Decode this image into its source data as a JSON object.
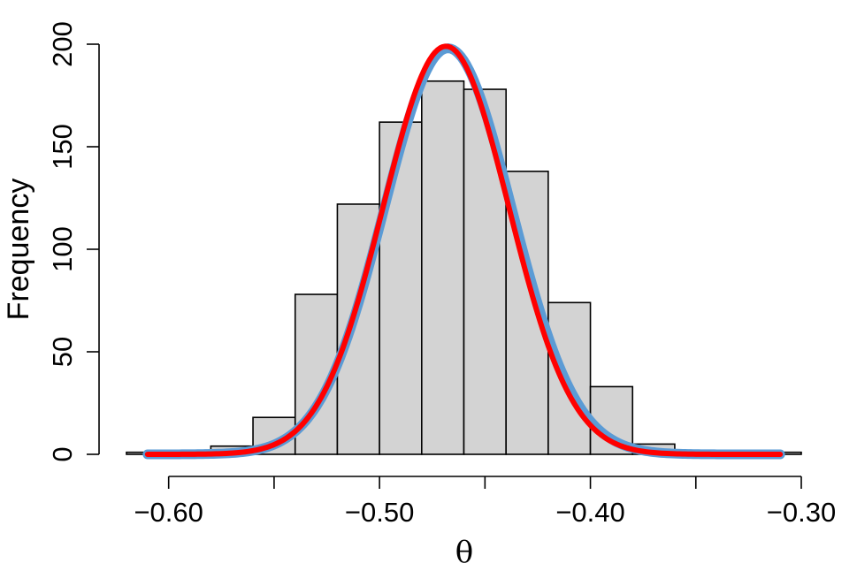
{
  "chart_data": {
    "type": "bar",
    "subtype": "histogram-with-density-curves",
    "title": "",
    "xlabel": "θ",
    "ylabel": "Frequency",
    "xlim": [
      -0.62,
      -0.3
    ],
    "ylim": [
      0,
      200
    ],
    "x_ticks": [
      -0.6,
      -0.55,
      -0.5,
      -0.45,
      -0.4,
      -0.35,
      -0.3
    ],
    "x_tick_labels": [
      "−0.60",
      "",
      "−0.50",
      "",
      "−0.40",
      "",
      "−0.30"
    ],
    "y_ticks": [
      0,
      50,
      100,
      150,
      200
    ],
    "y_tick_labels": [
      "0",
      "50",
      "100",
      "150",
      "200"
    ],
    "bin_edges": [
      -0.62,
      -0.6,
      -0.58,
      -0.56,
      -0.54,
      -0.52,
      -0.5,
      -0.48,
      -0.46,
      -0.44,
      -0.42,
      -0.4,
      -0.38,
      -0.36,
      -0.34,
      -0.32,
      -0.3
    ],
    "values": [
      1,
      1,
      4,
      18,
      78,
      122,
      162,
      182,
      178,
      138,
      74,
      33,
      5,
      1,
      1,
      1
    ],
    "bar_fill": "#d3d3d3",
    "series": [
      {
        "kind": "density-curve",
        "color": "#5b9bd5",
        "x_range": [
          -0.61,
          -0.31
        ],
        "mean": -0.4675,
        "sd": 0.0302,
        "peak": 198
      },
      {
        "kind": "density-curve",
        "color": "#ff0000",
        "x_range": [
          -0.61,
          -0.31
        ],
        "mean": -0.4685,
        "sd": 0.0298,
        "peak": 199
      }
    ],
    "grid": false,
    "legend": "none"
  }
}
